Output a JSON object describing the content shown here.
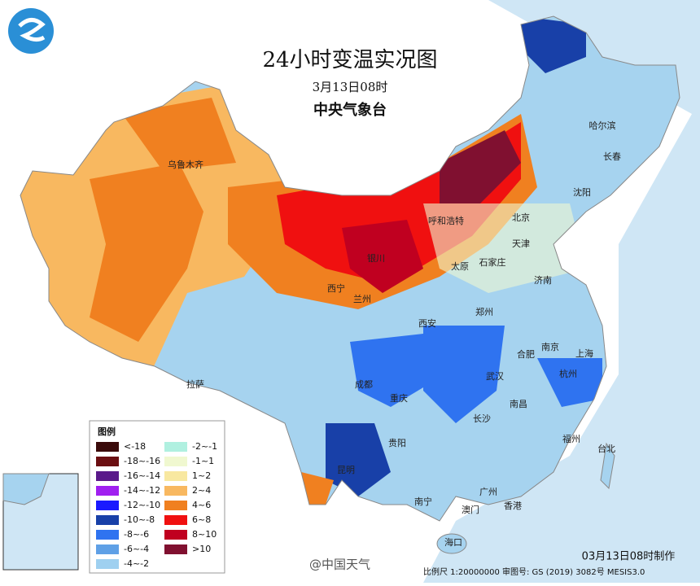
{
  "header": {
    "title": "24小时变温实况图",
    "time": "3月13日08时",
    "agency": "中央气象台"
  },
  "legend": {
    "title": "图例",
    "items": [
      {
        "label": "<-18",
        "color": "#3a0a0a"
      },
      {
        "label": "-18~-16",
        "color": "#6b0f12"
      },
      {
        "label": "-16~-14",
        "color": "#5a1a8a"
      },
      {
        "label": "-14~-12",
        "color": "#a020f0"
      },
      {
        "label": "-12~-10",
        "color": "#1a1aff"
      },
      {
        "label": "-10~-8",
        "color": "#1840a8"
      },
      {
        "label": "-8~-6",
        "color": "#2f73f0"
      },
      {
        "label": "-6~-4",
        "color": "#5fa0e6"
      },
      {
        "label": "-4~-2",
        "color": "#9fd0f0"
      },
      {
        "label": "-2~-1",
        "color": "#b0f0e0"
      },
      {
        "label": "-1~1",
        "color": "#f0f8d0"
      },
      {
        "label": "1~2",
        "color": "#f8e8a0"
      },
      {
        "label": "2~4",
        "color": "#f8b860"
      },
      {
        "label": "4~6",
        "color": "#f08020"
      },
      {
        "label": "6~8",
        "color": "#f01010"
      },
      {
        "label": "8~10",
        "color": "#c00020"
      },
      {
        "label": ">10",
        "color": "#801030"
      }
    ]
  },
  "cities": [
    "乌鲁木齐",
    "哈尔滨",
    "长春",
    "沈阳",
    "北京",
    "呼和浩特",
    "天津",
    "太原",
    "石家庄",
    "银川",
    "济南",
    "西宁",
    "兰州",
    "郑州",
    "西安",
    "合肥",
    "南京",
    "上海",
    "拉萨",
    "成都",
    "武汉",
    "杭州",
    "重庆",
    "长沙",
    "南昌",
    "贵阳",
    "福州",
    "昆明",
    "台北",
    "广州",
    "南宁",
    "澳门",
    "香港",
    "海口"
  ],
  "footer": {
    "source": "@中国天气",
    "scale": "比例尺 1:20000000   审图号: GS (2019) 3082号 MESIS3.0",
    "made": "03月13日08时制作"
  }
}
